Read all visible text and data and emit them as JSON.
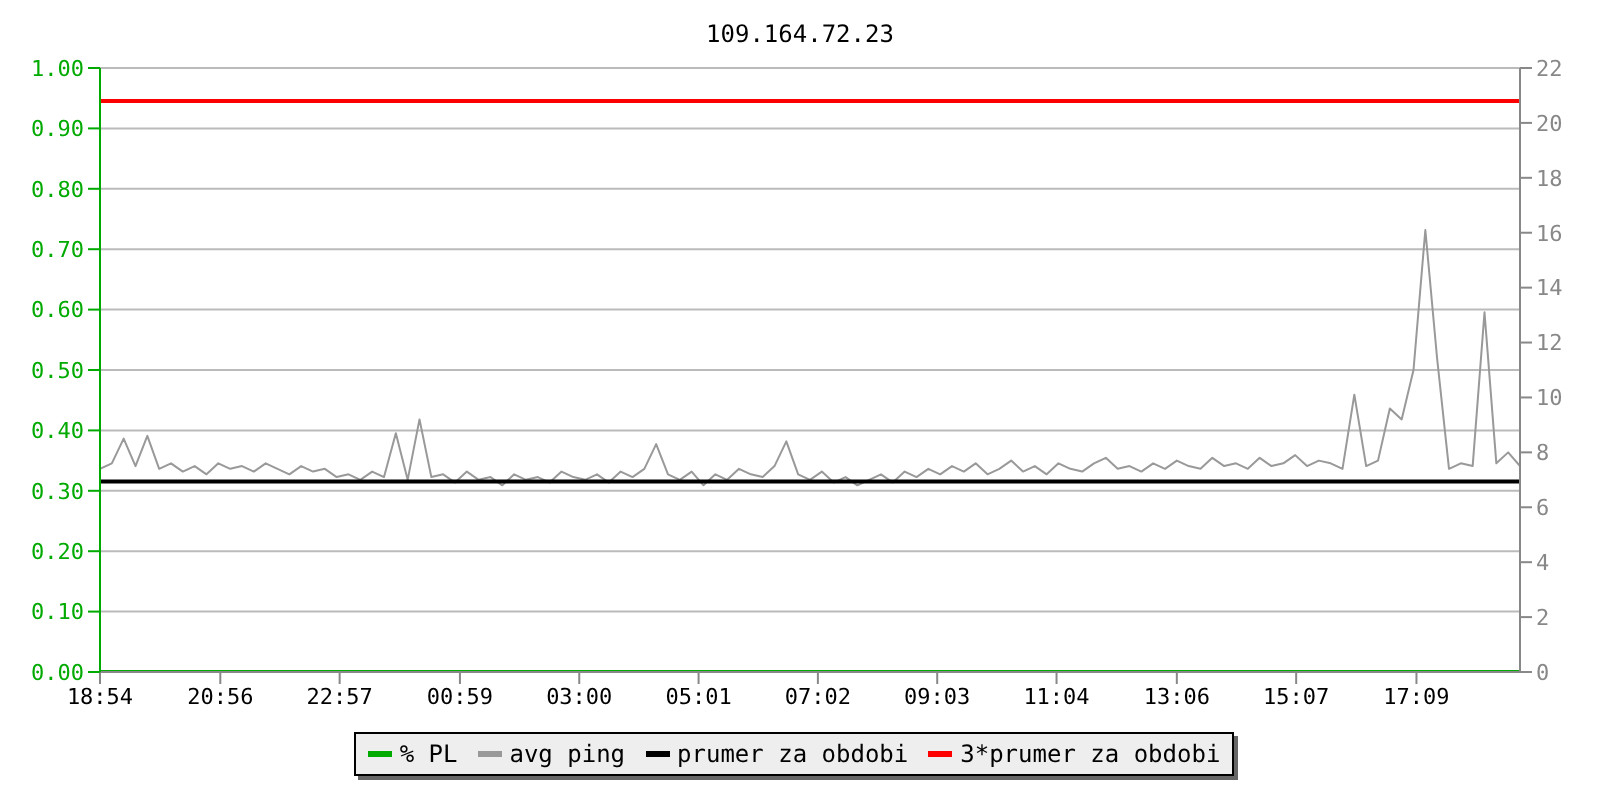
{
  "chart_data": {
    "type": "line",
    "title": "109.164.72.23",
    "marker": "none",
    "grid": "y",
    "legend": "bottom",
    "xlim": [
      "2000-01-01T18:54",
      "2000-01-02T18:54"
    ],
    "xticks": [
      {
        "value": "2000-01-01T18:54",
        "label": "18:54"
      },
      {
        "value": "2000-01-01T20:56",
        "label": "20:56"
      },
      {
        "value": "2000-01-01T22:57",
        "label": "22:57"
      },
      {
        "value": "2000-01-02T00:59",
        "label": "00:59"
      },
      {
        "value": "2000-01-02T03:00",
        "label": "03:00"
      },
      {
        "value": "2000-01-02T05:01",
        "label": "05:01"
      },
      {
        "value": "2000-01-02T07:02",
        "label": "07:02"
      },
      {
        "value": "2000-01-02T09:03",
        "label": "09:03"
      },
      {
        "value": "2000-01-02T11:04",
        "label": "11:04"
      },
      {
        "value": "2000-01-02T13:06",
        "label": "13:06"
      },
      {
        "value": "2000-01-02T15:07",
        "label": "15:07"
      },
      {
        "value": "2000-01-02T17:09",
        "label": "17:09"
      }
    ],
    "ylim": [
      0,
      1
    ],
    "yticks": [
      {
        "value": 0,
        "label": "0.00"
      },
      {
        "value": 0.1,
        "label": "0.10"
      },
      {
        "value": 0.2,
        "label": "0.20"
      },
      {
        "value": 0.3,
        "label": "0.30"
      },
      {
        "value": 0.4,
        "label": "0.40"
      },
      {
        "value": 0.5,
        "label": "0.50"
      },
      {
        "value": 0.6,
        "label": "0.60"
      },
      {
        "value": 0.7,
        "label": "0.70"
      },
      {
        "value": 0.8,
        "label": "0.80"
      },
      {
        "value": 0.9,
        "label": "0.90"
      },
      {
        "value": 1,
        "label": "1.00"
      }
    ],
    "y2lim": [
      0,
      22
    ],
    "y2ticks": [
      0,
      2,
      4,
      6,
      8,
      10,
      12,
      14,
      16,
      18,
      20,
      22
    ],
    "series": [
      {
        "name": "% PL",
        "color": "#00aa00",
        "x": [
          "2000-01-01T18:54",
          "2000-01-02T18:54"
        ],
        "values": [
          0,
          0
        ]
      },
      {
        "name": "avg ping",
        "color": "#999999",
        "axis": "y2",
        "x": [
          "2000-01-01T18:54",
          "2000-01-01T19:06",
          "2000-01-01T19:18",
          "2000-01-01T19:30",
          "2000-01-01T19:42",
          "2000-01-01T19:54",
          "2000-01-01T20:06",
          "2000-01-01T20:18",
          "2000-01-01T20:30",
          "2000-01-01T20:42",
          "2000-01-01T20:54",
          "2000-01-01T21:06",
          "2000-01-01T21:18",
          "2000-01-01T21:30",
          "2000-01-01T21:42",
          "2000-01-01T21:54",
          "2000-01-01T22:06",
          "2000-01-01T22:18",
          "2000-01-01T22:30",
          "2000-01-01T22:42",
          "2000-01-01T22:54",
          "2000-01-01T23:06",
          "2000-01-01T23:18",
          "2000-01-01T23:30",
          "2000-01-01T23:42",
          "2000-01-01T23:54",
          "2000-01-02T00:06",
          "2000-01-02T00:18",
          "2000-01-02T00:30",
          "2000-01-02T00:42",
          "2000-01-02T00:54",
          "2000-01-02T01:06",
          "2000-01-02T01:18",
          "2000-01-02T01:30",
          "2000-01-02T01:42",
          "2000-01-02T01:54",
          "2000-01-02T02:06",
          "2000-01-02T02:18",
          "2000-01-02T02:30",
          "2000-01-02T02:42",
          "2000-01-02T02:54",
          "2000-01-02T03:06",
          "2000-01-02T03:18",
          "2000-01-02T03:30",
          "2000-01-02T03:42",
          "2000-01-02T03:54",
          "2000-01-02T04:06",
          "2000-01-02T04:18",
          "2000-01-02T04:30",
          "2000-01-02T04:42",
          "2000-01-02T04:54",
          "2000-01-02T05:06",
          "2000-01-02T05:18",
          "2000-01-02T05:30",
          "2000-01-02T05:42",
          "2000-01-02T05:54",
          "2000-01-02T06:06",
          "2000-01-02T06:18",
          "2000-01-02T06:30",
          "2000-01-02T06:42",
          "2000-01-02T06:54",
          "2000-01-02T07:06",
          "2000-01-02T07:18",
          "2000-01-02T07:30",
          "2000-01-02T07:42",
          "2000-01-02T07:54",
          "2000-01-02T08:06",
          "2000-01-02T08:18",
          "2000-01-02T08:30",
          "2000-01-02T08:42",
          "2000-01-02T08:54",
          "2000-01-02T09:06",
          "2000-01-02T09:18",
          "2000-01-02T09:30",
          "2000-01-02T09:42",
          "2000-01-02T09:54",
          "2000-01-02T10:06",
          "2000-01-02T10:18",
          "2000-01-02T10:30",
          "2000-01-02T10:42",
          "2000-01-02T10:54",
          "2000-01-02T11:06",
          "2000-01-02T11:18",
          "2000-01-02T11:30",
          "2000-01-02T11:42",
          "2000-01-02T11:54",
          "2000-01-02T12:06",
          "2000-01-02T12:18",
          "2000-01-02T12:30",
          "2000-01-02T12:42",
          "2000-01-02T12:54",
          "2000-01-02T13:06",
          "2000-01-02T13:18",
          "2000-01-02T13:30",
          "2000-01-02T13:42",
          "2000-01-02T13:54",
          "2000-01-02T14:06",
          "2000-01-02T14:18",
          "2000-01-02T14:30",
          "2000-01-02T14:42",
          "2000-01-02T14:54",
          "2000-01-02T15:06",
          "2000-01-02T15:18",
          "2000-01-02T15:30",
          "2000-01-02T15:42",
          "2000-01-02T15:54",
          "2000-01-02T16:06",
          "2000-01-02T16:18",
          "2000-01-02T16:30",
          "2000-01-02T16:42",
          "2000-01-02T16:54",
          "2000-01-02T17:06",
          "2000-01-02T17:18",
          "2000-01-02T17:30",
          "2000-01-02T17:42",
          "2000-01-02T17:54",
          "2000-01-02T18:06",
          "2000-01-02T18:18",
          "2000-01-02T18:30",
          "2000-01-02T18:42",
          "2000-01-02T18:54"
        ],
        "values": [
          7.4,
          7.6,
          8.5,
          7.5,
          8.6,
          7.4,
          7.6,
          7.3,
          7.5,
          7.2,
          7.6,
          7.4,
          7.5,
          7.3,
          7.6,
          7.4,
          7.2,
          7.5,
          7.3,
          7.4,
          7.1,
          7.2,
          7.0,
          7.3,
          7.1,
          8.7,
          7.0,
          9.2,
          7.1,
          7.2,
          6.9,
          7.3,
          7.0,
          7.1,
          6.8,
          7.2,
          7.0,
          7.1,
          6.9,
          7.3,
          7.1,
          7.0,
          7.2,
          6.9,
          7.3,
          7.1,
          7.4,
          8.3,
          7.2,
          7.0,
          7.3,
          6.8,
          7.2,
          7.0,
          7.4,
          7.2,
          7.1,
          7.5,
          8.4,
          7.2,
          7.0,
          7.3,
          6.9,
          7.1,
          6.8,
          7.0,
          7.2,
          6.9,
          7.3,
          7.1,
          7.4,
          7.2,
          7.5,
          7.3,
          7.6,
          7.2,
          7.4,
          7.7,
          7.3,
          7.5,
          7.2,
          7.6,
          7.4,
          7.3,
          7.6,
          7.8,
          7.4,
          7.5,
          7.3,
          7.6,
          7.4,
          7.7,
          7.5,
          7.4,
          7.8,
          7.5,
          7.6,
          7.4,
          7.8,
          7.5,
          7.6,
          7.9,
          7.5,
          7.7,
          7.6,
          7.4,
          10.1,
          7.5,
          7.7,
          9.6,
          9.2,
          11.0,
          16.1,
          11.4,
          7.4,
          7.6,
          7.5,
          13.1,
          7.6,
          8.0,
          7.5
        ]
      },
      {
        "name": "prumer za obdobi",
        "color": "#000000",
        "axis": "y2",
        "x": [
          "2000-01-01T18:54",
          "2000-01-02T18:54"
        ],
        "values": [
          6.94,
          6.94
        ]
      },
      {
        "name": "3*prumer za obdobi",
        "color": "#ff0000",
        "axis": "y2",
        "x": [
          "2000-01-01T18:54",
          "2000-01-02T18:54"
        ],
        "values": [
          20.8,
          20.8
        ]
      }
    ]
  }
}
